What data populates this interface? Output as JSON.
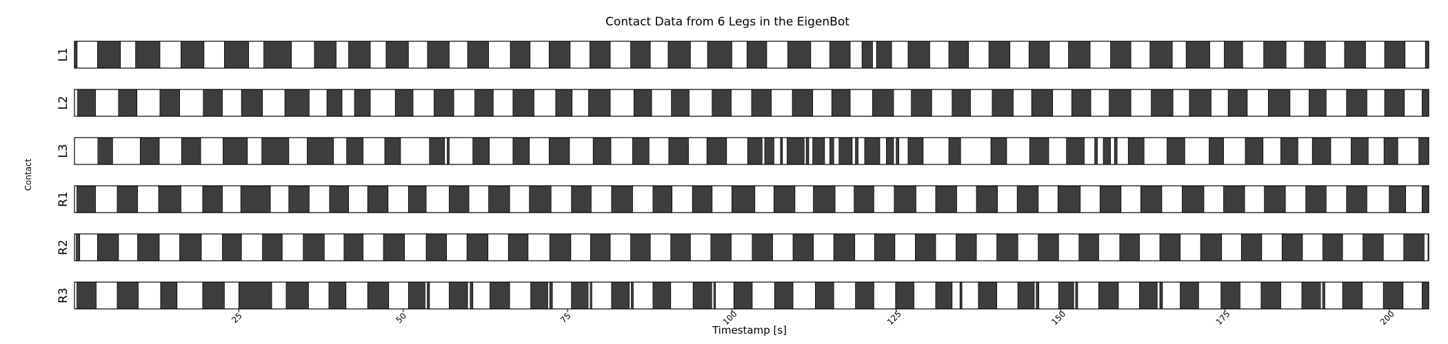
{
  "chart_data": {
    "type": "broken_barh",
    "title": "Contact Data from 6 Legs in the EigenBot",
    "xlabel": "Timestamp [s]",
    "ylabel": "Contact",
    "xlim": [
      0,
      206
    ],
    "xticks": [
      25,
      50,
      75,
      100,
      125,
      150,
      175,
      200
    ],
    "contact_color": "#3d3d3d",
    "no_contact_color": "#ffffff",
    "rows": [
      {
        "label": "L1",
        "contact_intervals": [
          [
            0,
            0.4
          ],
          [
            3.5,
            7
          ],
          [
            9.3,
            13
          ],
          [
            16.2,
            19.7
          ],
          [
            22.8,
            26.5
          ],
          [
            28.8,
            33
          ],
          [
            36.5,
            39.8
          ],
          [
            41.7,
            45
          ],
          [
            47.4,
            50.8
          ],
          [
            53.7,
            57
          ],
          [
            59.8,
            63
          ],
          [
            66.3,
            69.3
          ],
          [
            72.2,
            75.4
          ],
          [
            78.4,
            81.5
          ],
          [
            84.6,
            87.6
          ],
          [
            90.3,
            93.7
          ],
          [
            96.3,
            100
          ],
          [
            102.3,
            105.3
          ],
          [
            108.5,
            112
          ],
          [
            114.9,
            118
          ],
          [
            119.8,
            121.4
          ],
          [
            122,
            124.3
          ],
          [
            126.8,
            130.1
          ],
          [
            133,
            136
          ],
          [
            139.1,
            142.3
          ],
          [
            145.2,
            148.3
          ],
          [
            151.2,
            154.5
          ],
          [
            157.6,
            160.7
          ],
          [
            163.6,
            167
          ],
          [
            169.1,
            172.7
          ],
          [
            174.9,
            177.7
          ],
          [
            180.9,
            184.3
          ],
          [
            187.1,
            190.3
          ],
          [
            193.2,
            196.4
          ],
          [
            199.3,
            202.4
          ],
          [
            205.5,
            206
          ]
        ]
      },
      {
        "label": "L2",
        "contact_intervals": [
          [
            0.4,
            3.2
          ],
          [
            6.7,
            9.5
          ],
          [
            13,
            16
          ],
          [
            19.6,
            22.5
          ],
          [
            25.4,
            28.6
          ],
          [
            32,
            35.7
          ],
          [
            38.4,
            40.7
          ],
          [
            42.6,
            45
          ],
          [
            48.8,
            51.5
          ],
          [
            54.7,
            57.7
          ],
          [
            60.9,
            63.7
          ],
          [
            66.7,
            69.9
          ],
          [
            73.2,
            75.7
          ],
          [
            78.2,
            81.5
          ],
          [
            85.1,
            87.8
          ],
          [
            90.8,
            93.5
          ],
          [
            97,
            99.9
          ],
          [
            103,
            106
          ],
          [
            109.2,
            112.3
          ],
          [
            115.2,
            118
          ],
          [
            121.4,
            124.6
          ],
          [
            127.3,
            130.4
          ],
          [
            133.5,
            136.3
          ],
          [
            139.6,
            142.8
          ],
          [
            145.6,
            148.8
          ],
          [
            151.7,
            154.6
          ],
          [
            157.4,
            160.7
          ],
          [
            163.8,
            167.1
          ],
          [
            169.6,
            172.9
          ],
          [
            175.5,
            178.4
          ],
          [
            181.6,
            184.9
          ],
          [
            187.8,
            190.4
          ],
          [
            193.5,
            196.6
          ],
          [
            199.3,
            202.3
          ],
          [
            205,
            206
          ]
        ]
      },
      {
        "label": "L3",
        "contact_intervals": [
          [
            3.5,
            5.8
          ],
          [
            10,
            12.9
          ],
          [
            16.3,
            19.2
          ],
          [
            22.6,
            26.3
          ],
          [
            28.5,
            32.6
          ],
          [
            35.4,
            39.4
          ],
          [
            41.4,
            43.9
          ],
          [
            47.2,
            49.6
          ],
          [
            54,
            56.3
          ],
          [
            56.7,
            57
          ],
          [
            60.6,
            63.1
          ],
          [
            66.7,
            69.2
          ],
          [
            72.2,
            75.3
          ],
          [
            78.9,
            81.6
          ],
          [
            84.9,
            87.4
          ],
          [
            90.4,
            93.4
          ],
          [
            96.2,
            99.2
          ],
          [
            102.4,
            104.6
          ],
          [
            105,
            106.4
          ],
          [
            107.4,
            107.7
          ],
          [
            108.4,
            111
          ],
          [
            111.3,
            111.7
          ],
          [
            112.3,
            114.1
          ],
          [
            114.9,
            115.5
          ],
          [
            116.3,
            118.3
          ],
          [
            118.8,
            119.2
          ],
          [
            120.2,
            122.5
          ],
          [
            123.5,
            124.6
          ],
          [
            125,
            125.4
          ],
          [
            126.8,
            129.1
          ],
          [
            133,
            134.8
          ],
          [
            139.4,
            141.8
          ],
          [
            145.3,
            148.2
          ],
          [
            150.9,
            153.6
          ],
          [
            155.2,
            155.6
          ],
          [
            156.5,
            157.6
          ],
          [
            158.2,
            158.6
          ],
          [
            160.3,
            162.7
          ],
          [
            166.2,
            168.9
          ],
          [
            172.6,
            174.8
          ],
          [
            178.1,
            180.8
          ],
          [
            183.5,
            186.1
          ],
          [
            188.3,
            191.1
          ],
          [
            194.2,
            196.8
          ],
          [
            199.2,
            201.3
          ],
          [
            204.5,
            206
          ]
        ]
      },
      {
        "label": "R1",
        "contact_intervals": [
          [
            0.3,
            3.2
          ],
          [
            6.5,
            9.6
          ],
          [
            12.8,
            16.2
          ],
          [
            19.5,
            22.5
          ],
          [
            25.3,
            29.8
          ],
          [
            32.6,
            35.7
          ],
          [
            38.8,
            41.7
          ],
          [
            44.6,
            47.7
          ],
          [
            50.8,
            53.5
          ],
          [
            57,
            60
          ],
          [
            63,
            66.2
          ],
          [
            69.2,
            72.5
          ],
          [
            75.6,
            78.6
          ],
          [
            81.7,
            84.9
          ],
          [
            88,
            90.9
          ],
          [
            94,
            97
          ],
          [
            100,
            103.5
          ],
          [
            106.4,
            109.6
          ],
          [
            112.4,
            115.7
          ],
          [
            118.6,
            121.6
          ],
          [
            124.7,
            128
          ],
          [
            131,
            134.2
          ],
          [
            137.2,
            140.4
          ],
          [
            143.4,
            146.6
          ],
          [
            149.6,
            153
          ],
          [
            156,
            159.2
          ],
          [
            162.2,
            165.4
          ],
          [
            168.5,
            171.8
          ],
          [
            174.8,
            178
          ],
          [
            181,
            184.2
          ],
          [
            187.3,
            190.4
          ],
          [
            193.5,
            196.6
          ],
          [
            200,
            202.5
          ],
          [
            205,
            206
          ]
        ]
      },
      {
        "label": "R2",
        "contact_intervals": [
          [
            0.2,
            0.8
          ],
          [
            3.5,
            6.7
          ],
          [
            9.6,
            12.9
          ],
          [
            16,
            19.3
          ],
          [
            22.5,
            25.4
          ],
          [
            28.6,
            31.6
          ],
          [
            34.8,
            38
          ],
          [
            41,
            43.9
          ],
          [
            47,
            50.2
          ],
          [
            53.5,
            56.6
          ],
          [
            59.7,
            62.9
          ],
          [
            66,
            69
          ],
          [
            72.3,
            75.5
          ],
          [
            78.5,
            81.5
          ],
          [
            84.6,
            87.6
          ],
          [
            90.7,
            93.7
          ],
          [
            96.8,
            99.9
          ],
          [
            103.1,
            106.2
          ],
          [
            109.3,
            112.4
          ],
          [
            115.5,
            118.7
          ],
          [
            121.7,
            124.8
          ],
          [
            127.9,
            131
          ],
          [
            134.1,
            137.2
          ],
          [
            140.3,
            143.5
          ],
          [
            146.6,
            149.7
          ],
          [
            152.8,
            155.8
          ],
          [
            159,
            162
          ],
          [
            165.1,
            168.2
          ],
          [
            171.3,
            174.5
          ],
          [
            177.5,
            180.6
          ],
          [
            183.7,
            186.8
          ],
          [
            189.9,
            192.9
          ],
          [
            196,
            199.1
          ],
          [
            202.2,
            205.3
          ],
          [
            205.9,
            206
          ]
        ]
      },
      {
        "label": "R3",
        "contact_intervals": [
          [
            0.3,
            3.3
          ],
          [
            6.5,
            9.7
          ],
          [
            13.1,
            15.6
          ],
          [
            19.5,
            22.8
          ],
          [
            25,
            30
          ],
          [
            32.2,
            35.6
          ],
          [
            38.7,
            41.3
          ],
          [
            44.6,
            47.8
          ],
          [
            50.8,
            53.4
          ],
          [
            53.6,
            54
          ],
          [
            57,
            59.8
          ],
          [
            60.2,
            60.6
          ],
          [
            63.2,
            66.2
          ],
          [
            69.4,
            72
          ],
          [
            72.3,
            72.7
          ],
          [
            75.6,
            78.2
          ],
          [
            78.4,
            78.7
          ],
          [
            81.7,
            84.4
          ],
          [
            84.7,
            85
          ],
          [
            88,
            90.7
          ],
          [
            94.1,
            97
          ],
          [
            97.2,
            97.5
          ],
          [
            100.3,
            103.1
          ],
          [
            106.5,
            109.3
          ],
          [
            112.7,
            115.5
          ],
          [
            118.8,
            121.6
          ],
          [
            124.9,
            127.7
          ],
          [
            131,
            133.5
          ],
          [
            134.7,
            135
          ],
          [
            137.5,
            140.3
          ],
          [
            143.5,
            146
          ],
          [
            146.3,
            146.7
          ],
          [
            149.7,
            152
          ],
          [
            152.3,
            152.6
          ],
          [
            155.8,
            158.8
          ],
          [
            162,
            164.7
          ],
          [
            165.1,
            165.5
          ],
          [
            168.2,
            171
          ],
          [
            174.4,
            177.3
          ],
          [
            180.5,
            183.5
          ],
          [
            186.7,
            189.6
          ],
          [
            189.8,
            190.2
          ],
          [
            192.9,
            195.9
          ],
          [
            199.1,
            202.1
          ],
          [
            205,
            206
          ]
        ]
      }
    ]
  }
}
